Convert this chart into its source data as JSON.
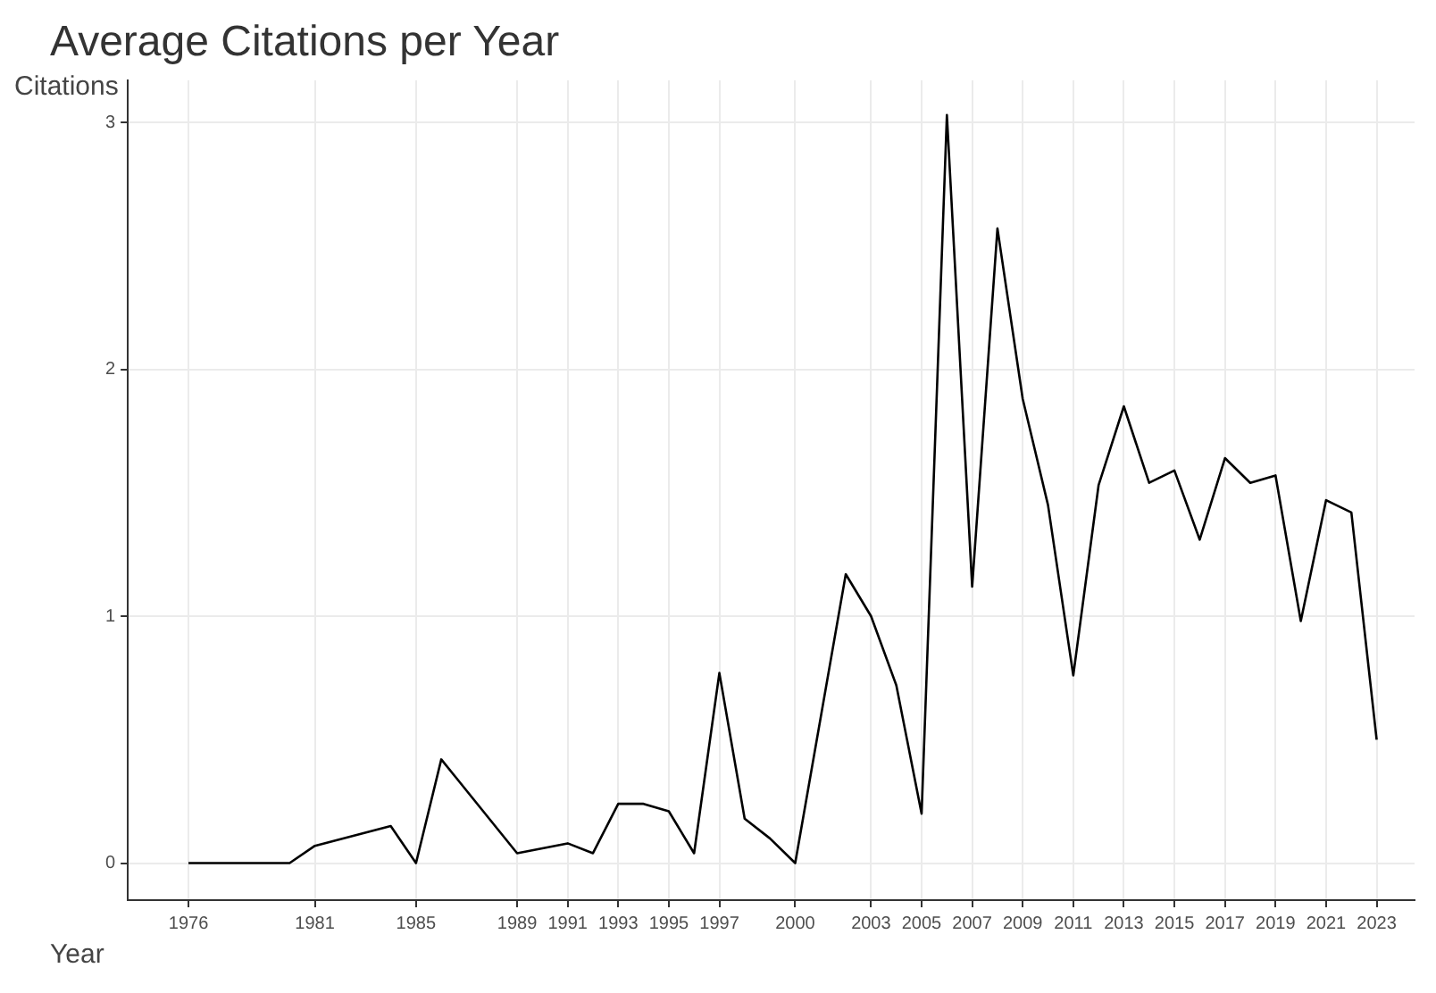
{
  "chart_data": {
    "type": "line",
    "title": "Average Citations per Year",
    "xlabel": "Year",
    "ylabel": "Citations",
    "x": [
      1976,
      1980,
      1981,
      1984,
      1985,
      1986,
      1989,
      1991,
      1992,
      1993,
      1994,
      1995,
      1996,
      1997,
      1998,
      1999,
      2000,
      2002,
      2003,
      2004,
      2005,
      2006,
      2007,
      2008,
      2009,
      2010,
      2011,
      2012,
      2013,
      2014,
      2015,
      2016,
      2017,
      2018,
      2019,
      2020,
      2021,
      2022,
      2023
    ],
    "series": [
      {
        "color": "#000000",
        "values": [
          0,
          0,
          0.07,
          0.15,
          0,
          0.42,
          0.04,
          0.08,
          0.04,
          0.24,
          0.24,
          0.21,
          0.04,
          0.77,
          0.18,
          0.1,
          0,
          1.17,
          1.0,
          0.72,
          0.2,
          3.03,
          1.12,
          2.57,
          1.88,
          1.45,
          0.76,
          1.53,
          1.85,
          1.54,
          1.59,
          1.31,
          1.64,
          1.54,
          1.57,
          0.98,
          1.47,
          1.42,
          0.5
        ]
      }
    ],
    "xlim": [
      1973.6,
      2024.5
    ],
    "ylim": [
      -0.15,
      3.17
    ],
    "xticks": [
      1976,
      1981,
      1985,
      1989,
      1991,
      1993,
      1995,
      1997,
      2000,
      2003,
      2005,
      2007,
      2009,
      2011,
      2013,
      2015,
      2017,
      2019,
      2021,
      2023
    ],
    "yticks": [
      0,
      1,
      2,
      3
    ],
    "grid": true,
    "legend": false,
    "marker": "none",
    "line_style": "solid"
  }
}
